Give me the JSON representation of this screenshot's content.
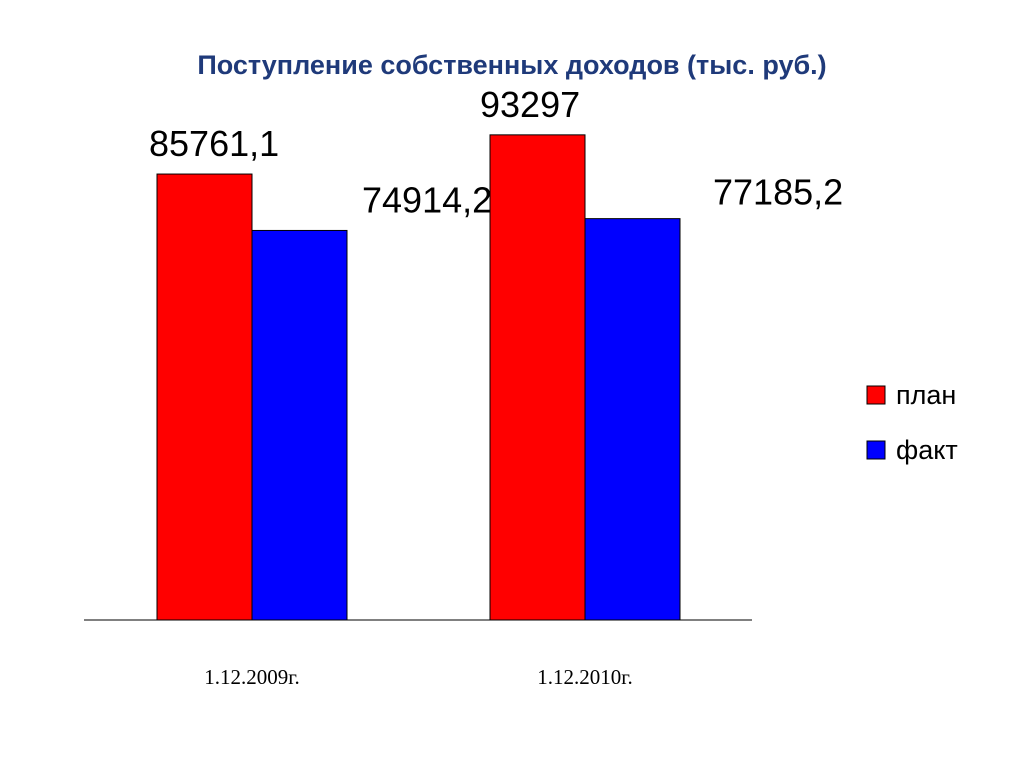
{
  "title": "Поступление собственных доходов (тыс. руб.)",
  "colors": {
    "plan": "#ff0000",
    "fact": "#0000ff",
    "title": "#1f3a7a"
  },
  "chart_data": {
    "type": "bar",
    "title": "Поступление собственных доходов (тыс. руб.)",
    "categories": [
      "1.12.2009г.",
      "1.12.2010г."
    ],
    "series": [
      {
        "name": "план",
        "values": [
          85761.1,
          93297
        ],
        "labels": [
          "85761,1",
          "93297"
        ],
        "color": "#ff0000"
      },
      {
        "name": "факт",
        "values": [
          74914.2,
          77185.2
        ],
        "labels": [
          "74914,2",
          "77185,2"
        ],
        "color": "#0000ff"
      }
    ],
    "ylim": [
      0,
      100000
    ],
    "grid": false,
    "legend": "right"
  }
}
